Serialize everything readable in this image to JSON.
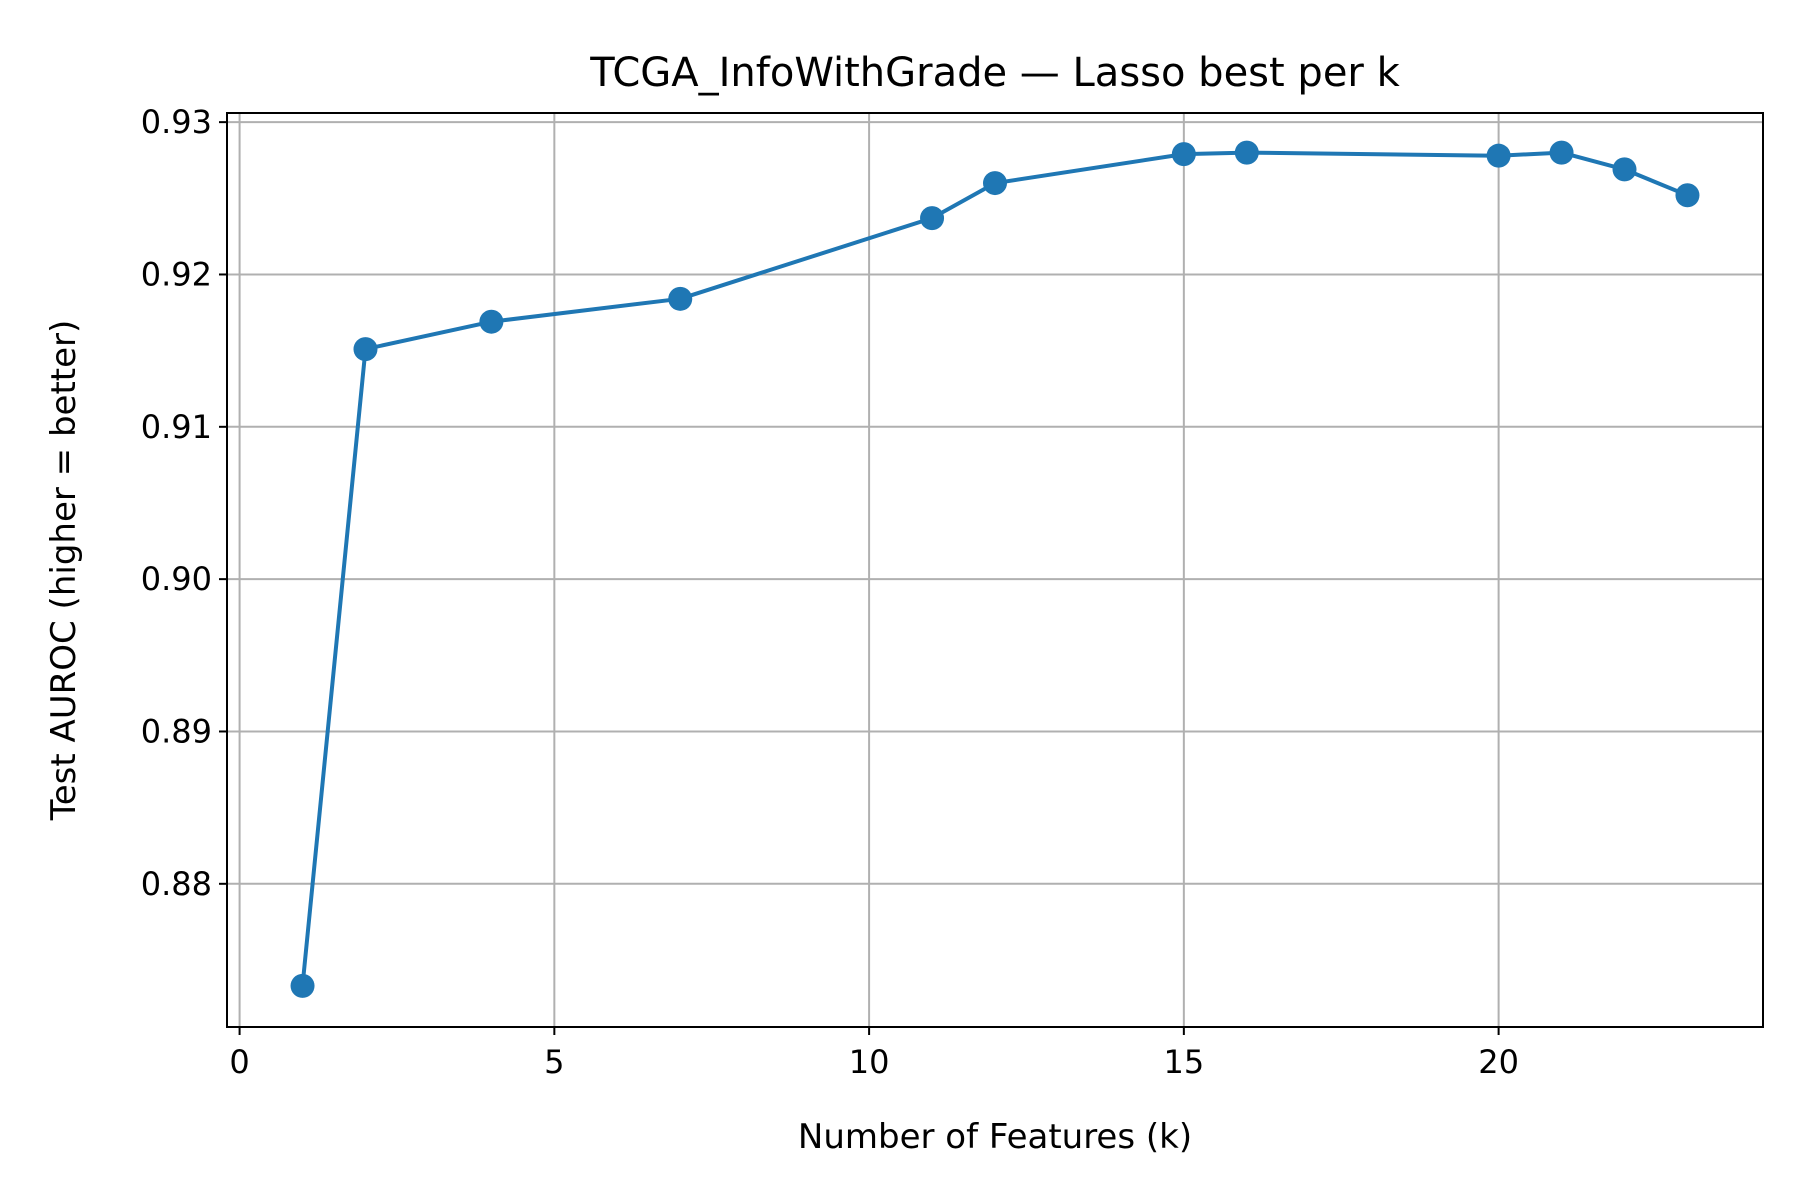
{
  "chart_data": {
    "type": "line",
    "title": "TCGA_InfoWithGrade — Lasso best per k",
    "xlabel": "Number of Features (k)",
    "ylabel": "Test AUROC (higher = better)",
    "xlim": [
      -0.2,
      24.2
    ],
    "ylim": [
      0.8706,
      0.9306
    ],
    "xticks": [
      0,
      5,
      10,
      15,
      20
    ],
    "yticks": [
      0.88,
      0.89,
      0.9,
      0.91,
      0.92,
      0.93
    ],
    "ytick_labels": [
      "0.88",
      "0.89",
      "0.90",
      "0.91",
      "0.92",
      "0.93"
    ],
    "grid": true,
    "series": [
      {
        "color": "#1f77b4",
        "marker": "circle",
        "x": [
          1,
          2,
          4,
          7,
          11,
          12,
          15,
          16,
          20,
          21,
          22,
          23
        ],
        "y": [
          0.8733,
          0.9151,
          0.9169,
          0.9184,
          0.9237,
          0.926,
          0.9279,
          0.928,
          0.9278,
          0.928,
          0.9269,
          0.9252
        ]
      }
    ]
  }
}
